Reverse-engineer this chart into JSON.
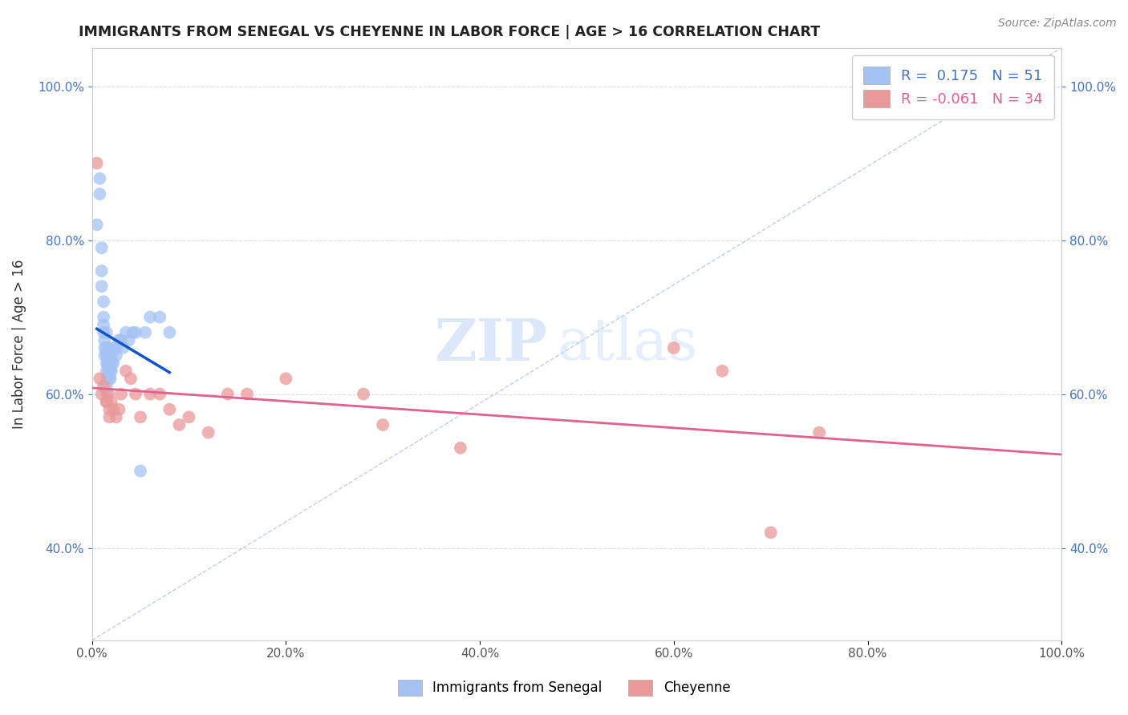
{
  "title": "IMMIGRANTS FROM SENEGAL VS CHEYENNE IN LABOR FORCE | AGE > 16 CORRELATION CHART",
  "source": "Source: ZipAtlas.com",
  "xlabel": "",
  "ylabel": "In Labor Force | Age > 16",
  "xlim": [
    0.0,
    1.0
  ],
  "ylim": [
    0.28,
    1.05
  ],
  "x_ticks": [
    0.0,
    0.2,
    0.4,
    0.6,
    0.8,
    1.0
  ],
  "x_tick_labels": [
    "0.0%",
    "20.0%",
    "40.0%",
    "60.0%",
    "80.0%",
    "100.0%"
  ],
  "y_ticks": [
    0.4,
    0.6,
    0.8,
    1.0
  ],
  "y_tick_labels": [
    "40.0%",
    "60.0%",
    "80.0%",
    "100.0%"
  ],
  "legend_r_blue": "0.175",
  "legend_n_blue": "51",
  "legend_r_pink": "-0.061",
  "legend_n_pink": "34",
  "watermark_zip": "ZIP",
  "watermark_atlas": "atlas",
  "blue_color": "#a4c2f4",
  "pink_color": "#ea9999",
  "blue_line_color": "#1155cc",
  "pink_line_color": "#e06090",
  "diag_line_color": "#b0c4de",
  "blue_scatter_x": [
    0.005,
    0.008,
    0.008,
    0.01,
    0.01,
    0.01,
    0.012,
    0.012,
    0.012,
    0.012,
    0.013,
    0.013,
    0.013,
    0.015,
    0.015,
    0.015,
    0.015,
    0.015,
    0.015,
    0.015,
    0.015,
    0.016,
    0.016,
    0.017,
    0.017,
    0.017,
    0.018,
    0.018,
    0.018,
    0.018,
    0.019,
    0.019,
    0.02,
    0.02,
    0.02,
    0.022,
    0.022,
    0.025,
    0.025,
    0.028,
    0.03,
    0.032,
    0.035,
    0.038,
    0.042,
    0.045,
    0.05,
    0.055,
    0.06,
    0.07,
    0.08
  ],
  "blue_scatter_y": [
    0.82,
    0.86,
    0.88,
    0.79,
    0.76,
    0.74,
    0.72,
    0.7,
    0.69,
    0.68,
    0.67,
    0.66,
    0.65,
    0.68,
    0.66,
    0.65,
    0.64,
    0.63,
    0.62,
    0.61,
    0.6,
    0.65,
    0.64,
    0.66,
    0.65,
    0.63,
    0.65,
    0.64,
    0.63,
    0.62,
    0.63,
    0.62,
    0.65,
    0.64,
    0.63,
    0.66,
    0.64,
    0.66,
    0.65,
    0.67,
    0.67,
    0.66,
    0.68,
    0.67,
    0.68,
    0.68,
    0.5,
    0.68,
    0.7,
    0.7,
    0.68
  ],
  "pink_scatter_x": [
    0.005,
    0.008,
    0.01,
    0.012,
    0.015,
    0.015,
    0.017,
    0.018,
    0.018,
    0.02,
    0.022,
    0.025,
    0.028,
    0.03,
    0.035,
    0.04,
    0.045,
    0.05,
    0.06,
    0.07,
    0.08,
    0.09,
    0.1,
    0.12,
    0.14,
    0.16,
    0.2,
    0.28,
    0.3,
    0.38,
    0.6,
    0.65,
    0.7,
    0.75
  ],
  "pink_scatter_y": [
    0.9,
    0.62,
    0.6,
    0.61,
    0.59,
    0.59,
    0.6,
    0.58,
    0.57,
    0.59,
    0.58,
    0.57,
    0.58,
    0.6,
    0.63,
    0.62,
    0.6,
    0.57,
    0.6,
    0.6,
    0.58,
    0.56,
    0.57,
    0.55,
    0.6,
    0.6,
    0.62,
    0.6,
    0.56,
    0.53,
    0.66,
    0.63,
    0.42,
    0.55
  ]
}
